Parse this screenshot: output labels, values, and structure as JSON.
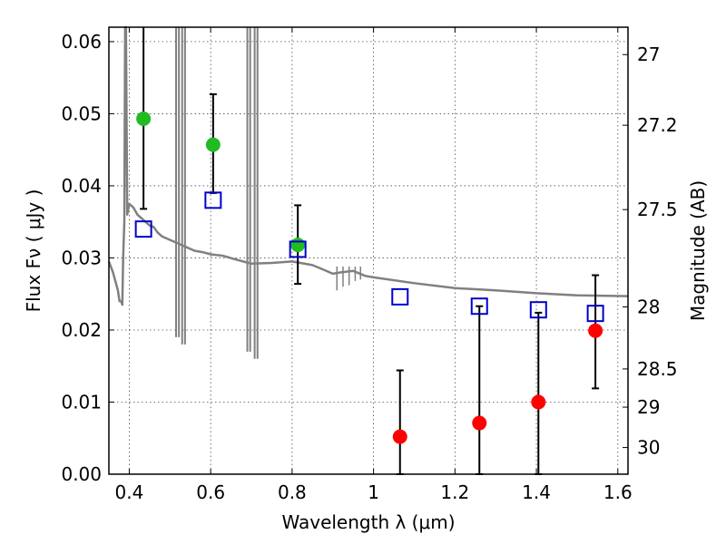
{
  "chart_data": {
    "type": "scatter",
    "title": "",
    "xlabel": "Wavelength  λ (μm)",
    "ylabel": "Flux  Fν  ( μJy )",
    "ylabel_right": "Magnitude (AB)",
    "xlim": [
      0.35,
      1.625
    ],
    "ylim": [
      0.0,
      0.062
    ],
    "grid": true,
    "x_ticks": [
      0.4,
      0.6,
      0.8,
      1.0,
      1.2,
      1.4,
      1.6
    ],
    "x_tick_labels": [
      "0.4",
      "0.6",
      "0.8",
      "1",
      "1.2",
      "1.4",
      "1.6"
    ],
    "y_ticks": [
      0.0,
      0.01,
      0.02,
      0.03,
      0.04,
      0.05,
      0.06
    ],
    "y_tick_labels": [
      "0.00",
      "0.01",
      "0.02",
      "0.03",
      "0.04",
      "0.05",
      "0.06"
    ],
    "right_ticks": [
      {
        "label": "27",
        "flux": 0.0582
      },
      {
        "label": "27.2",
        "flux": 0.0484
      },
      {
        "label": "27.5",
        "flux": 0.0367
      },
      {
        "label": "28",
        "flux": 0.0232
      },
      {
        "label": "28.5",
        "flux": 0.0146
      },
      {
        "label": "29",
        "flux": 0.0093
      },
      {
        "label": "30",
        "flux": 0.0037
      }
    ],
    "series": [
      {
        "kind": "measured-detections",
        "marker": "circle",
        "color": "#22bb22",
        "points": [
          {
            "x": 0.435,
            "y": 0.0493,
            "err_low": 0.0368,
            "err_high": 0.064
          },
          {
            "x": 0.606,
            "y": 0.0457,
            "err_low": 0.039,
            "err_high": 0.0527
          },
          {
            "x": 0.814,
            "y": 0.0318,
            "err_low": 0.0264,
            "err_high": 0.0373
          }
        ]
      },
      {
        "kind": "measured-upper",
        "marker": "circle",
        "color": "#ff0000",
        "points": [
          {
            "x": 1.065,
            "y": 0.0052,
            "err_low": 0.0,
            "err_high": 0.0144
          },
          {
            "x": 1.26,
            "y": 0.0071,
            "err_low": 0.0,
            "err_high": 0.0233
          },
          {
            "x": 1.405,
            "y": 0.01,
            "err_low": 0.0,
            "err_high": 0.0224
          },
          {
            "x": 1.545,
            "y": 0.0199,
            "err_low": 0.0119,
            "err_high": 0.0276
          }
        ]
      },
      {
        "kind": "model-photometry",
        "marker": "square",
        "color": "#0000cc",
        "points": [
          {
            "x": 0.435,
            "y": 0.034
          },
          {
            "x": 0.606,
            "y": 0.038
          },
          {
            "x": 0.814,
            "y": 0.0312
          },
          {
            "x": 1.065,
            "y": 0.0246
          },
          {
            "x": 1.26,
            "y": 0.0233
          },
          {
            "x": 1.405,
            "y": 0.0228
          },
          {
            "x": 1.545,
            "y": 0.0223
          }
        ]
      },
      {
        "kind": "model-spectrum",
        "color": "#808080",
        "x": [
          0.35,
          0.36,
          0.372,
          0.376,
          0.38,
          0.383,
          0.385,
          0.388,
          0.39,
          0.392,
          0.395,
          0.4,
          0.41,
          0.42,
          0.43,
          0.44,
          0.45,
          0.46,
          0.47,
          0.48,
          0.5,
          0.52,
          0.54,
          0.56,
          0.58,
          0.6,
          0.63,
          0.66,
          0.7,
          0.75,
          0.8,
          0.85,
          0.88,
          0.9,
          0.92,
          0.95,
          0.98,
          1.0,
          1.1,
          1.2,
          1.3,
          1.4,
          1.5,
          1.625
        ],
        "y": [
          0.0295,
          0.028,
          0.0255,
          0.024,
          0.024,
          0.0235,
          0.03,
          0.035,
          0.065,
          0.065,
          0.036,
          0.0375,
          0.037,
          0.036,
          0.0355,
          0.035,
          0.0345,
          0.0343,
          0.0335,
          0.033,
          0.0325,
          0.032,
          0.0315,
          0.031,
          0.0308,
          0.0305,
          0.0303,
          0.0298,
          0.0292,
          0.0293,
          0.0295,
          0.029,
          0.0283,
          0.0278,
          0.028,
          0.0282,
          0.0275,
          0.0273,
          0.0265,
          0.0258,
          0.0255,
          0.0251,
          0.0248,
          0.0247
        ]
      }
    ]
  }
}
